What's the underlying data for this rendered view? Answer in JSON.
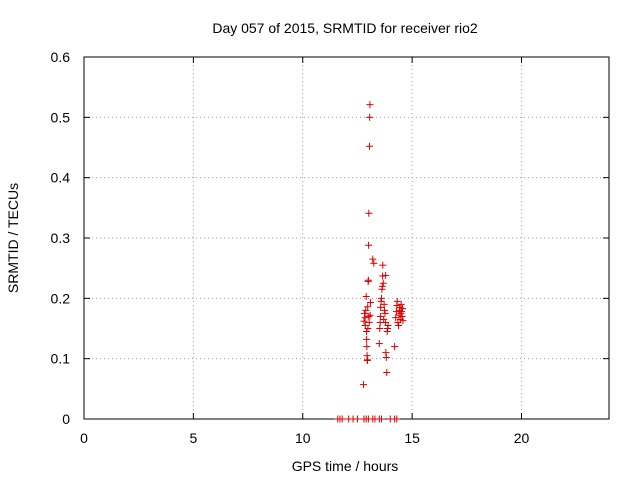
{
  "chart_data": {
    "type": "scatter",
    "title": "Day 057 of 2015, SRMTID for receiver rio2",
    "xlabel": "GPS time / hours",
    "ylabel": "SRMTID / TECUs",
    "xlim": [
      0,
      24
    ],
    "ylim": [
      0,
      0.6
    ],
    "xticks": [
      0,
      5,
      10,
      15,
      20
    ],
    "yticks": [
      0,
      0.1,
      0.2,
      0.3,
      0.4,
      0.5,
      0.6
    ],
    "grid": true,
    "marker": "+",
    "series": [
      {
        "name": "rio2",
        "color": "#dd0000",
        "points": [
          [
            11.6,
            0
          ],
          [
            11.7,
            0
          ],
          [
            11.8,
            0
          ],
          [
            12.1,
            0
          ],
          [
            12.3,
            0
          ],
          [
            12.5,
            0
          ],
          [
            12.8,
            0
          ],
          [
            12.9,
            0
          ],
          [
            13.0,
            0
          ],
          [
            13.2,
            0
          ],
          [
            13.3,
            0
          ],
          [
            13.5,
            0
          ],
          [
            13.6,
            0
          ],
          [
            14.0,
            0
          ],
          [
            14.2,
            0
          ],
          [
            14.3,
            0
          ],
          [
            12.78,
            0.057
          ],
          [
            12.8,
            0.162
          ],
          [
            12.82,
            0.175
          ],
          [
            12.85,
            0.168
          ],
          [
            12.86,
            0.155
          ],
          [
            12.88,
            0.18
          ],
          [
            12.9,
            0.203
          ],
          [
            12.91,
            0.145
          ],
          [
            12.92,
            0.132
          ],
          [
            12.93,
            0.12
          ],
          [
            12.94,
            0.105
          ],
          [
            12.95,
            0.097
          ],
          [
            12.96,
            0.098
          ],
          [
            12.97,
            0.186
          ],
          [
            12.98,
            0.15
          ],
          [
            12.99,
            0.228
          ],
          [
            13.0,
            0.23
          ],
          [
            13.01,
            0.288
          ],
          [
            13.02,
            0.341
          ],
          [
            13.05,
            0.452
          ],
          [
            13.06,
            0.5
          ],
          [
            13.07,
            0.521
          ],
          [
            13.02,
            0.17
          ],
          [
            13.04,
            0.16
          ],
          [
            13.08,
            0.172
          ],
          [
            13.1,
            0.193
          ],
          [
            13.2,
            0.265
          ],
          [
            13.25,
            0.258
          ],
          [
            13.5,
            0.125
          ],
          [
            13.52,
            0.15
          ],
          [
            13.54,
            0.16
          ],
          [
            13.55,
            0.17
          ],
          [
            13.56,
            0.185
          ],
          [
            13.58,
            0.195
          ],
          [
            13.6,
            0.2
          ],
          [
            13.62,
            0.215
          ],
          [
            13.64,
            0.22
          ],
          [
            13.65,
            0.237
          ],
          [
            13.66,
            0.255
          ],
          [
            13.68,
            0.225
          ],
          [
            13.7,
            0.165
          ],
          [
            13.72,
            0.19
          ],
          [
            13.74,
            0.18
          ],
          [
            13.76,
            0.175
          ],
          [
            13.78,
            0.16
          ],
          [
            13.8,
            0.11
          ],
          [
            13.82,
            0.102
          ],
          [
            13.84,
            0.077
          ],
          [
            13.86,
            0.145
          ],
          [
            13.88,
            0.15
          ],
          [
            13.9,
            0.155
          ],
          [
            13.79,
            0.238
          ],
          [
            14.2,
            0.12
          ],
          [
            14.25,
            0.168
          ],
          [
            14.28,
            0.178
          ],
          [
            14.3,
            0.188
          ],
          [
            14.32,
            0.195
          ],
          [
            14.35,
            0.16
          ],
          [
            14.38,
            0.155
          ],
          [
            14.4,
            0.172
          ],
          [
            14.42,
            0.18
          ],
          [
            14.44,
            0.185
          ],
          [
            14.46,
            0.165
          ],
          [
            14.48,
            0.175
          ],
          [
            14.5,
            0.19
          ],
          [
            14.52,
            0.178
          ],
          [
            14.54,
            0.17
          ],
          [
            14.56,
            0.183
          ],
          [
            14.58,
            0.163
          ]
        ]
      }
    ]
  }
}
